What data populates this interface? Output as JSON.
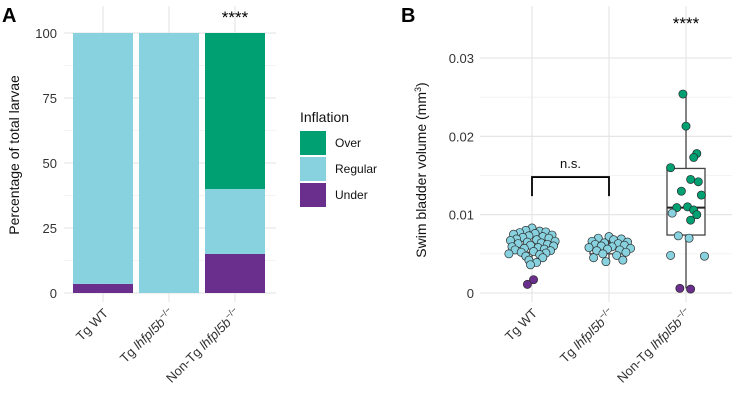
{
  "colors": {
    "over": "#00A072",
    "regular": "#88D2E0",
    "under": "#6A2E8C",
    "box_fill": "#ffffff",
    "box_stroke": "#444444"
  },
  "chart_data": [
    {
      "panel": "A",
      "type": "bar",
      "stacked": true,
      "categories": [
        "Tg WT",
        "Tg lhfpl5b−/−",
        "Non-Tg lhfpl5b−/−"
      ],
      "category_parts": [
        {
          "plain": "Tg WT",
          "italic": "",
          "sup": ""
        },
        {
          "plain": "Tg ",
          "italic": "lhfpl5b",
          "sup": "−/−"
        },
        {
          "plain": "Non-Tg ",
          "italic": "lhfpl5b",
          "sup": "−/−"
        }
      ],
      "series": [
        {
          "name": "Under",
          "values": [
            3.5,
            0,
            15
          ]
        },
        {
          "name": "Regular",
          "values": [
            96.5,
            100,
            25
          ]
        },
        {
          "name": "Over",
          "values": [
            0,
            0,
            60
          ]
        }
      ],
      "ylabel": "Percentage of total larvae",
      "xlabel": "",
      "ylim": [
        0,
        100
      ],
      "yticks": [
        0,
        25,
        50,
        75,
        100
      ],
      "ytick_labels": [
        "0",
        "25",
        "50",
        "75",
        "100"
      ],
      "grid": true,
      "legend": {
        "title": "Inflation",
        "placement": "right",
        "items": [
          {
            "label": "Over",
            "key": "over"
          },
          {
            "label": "Regular",
            "key": "regular"
          },
          {
            "label": "Under",
            "key": "under"
          }
        ]
      },
      "annotations": [
        {
          "text": "****",
          "category_index": 2
        }
      ]
    },
    {
      "panel": "B",
      "type": "scatter",
      "overlay": "boxplot",
      "categories": [
        "Tg WT",
        "Tg lhfpl5b−/−",
        "Non-Tg lhfpl5b−/−"
      ],
      "category_parts": [
        {
          "plain": "Tg WT",
          "italic": "",
          "sup": ""
        },
        {
          "plain": "Tg ",
          "italic": "lhfpl5b",
          "sup": "−/−"
        },
        {
          "plain": "Non-Tg ",
          "italic": "lhfpl5b",
          "sup": "−/−"
        }
      ],
      "ylabel_text": "Swim bladder volume (mm",
      "ylabel_sup": "3",
      "ylabel_close": ")",
      "xlabel": "",
      "ylim": [
        0,
        0.03
      ],
      "yticks": [
        0,
        0.01,
        0.02,
        0.03
      ],
      "ytick_labels": [
        "0",
        "0.01",
        "0.02",
        "0.03"
      ],
      "grid": true,
      "boxes": [
        {
          "q1": 0.0052,
          "median": 0.0059,
          "q3": 0.0072,
          "whisker_low": 0.0036,
          "whisker_high": 0.0083
        },
        {
          "q1": 0.005,
          "median": 0.0057,
          "q3": 0.0064,
          "whisker_low": 0.004,
          "whisker_high": 0.0072
        },
        {
          "q1": 0.0074,
          "median": 0.0109,
          "q3": 0.0159,
          "whisker_low": 0.0006,
          "whisker_high": 0.0254
        }
      ],
      "points": [
        [
          {
            "y": 0.0083,
            "c": "regular",
            "dx": 0.0
          },
          {
            "y": 0.008,
            "c": "regular",
            "dx": -0.08
          },
          {
            "y": 0.0079,
            "c": "regular",
            "dx": 0.1
          },
          {
            "y": 0.0078,
            "c": "regular",
            "dx": 0.18
          },
          {
            "y": 0.0077,
            "c": "regular",
            "dx": -0.16
          },
          {
            "y": 0.0076,
            "c": "regular",
            "dx": 0.04
          },
          {
            "y": 0.0075,
            "c": "regular",
            "dx": -0.24
          },
          {
            "y": 0.0074,
            "c": "regular",
            "dx": 0.26
          },
          {
            "y": 0.0073,
            "c": "regular",
            "dx": -0.04
          },
          {
            "y": 0.0072,
            "c": "regular",
            "dx": 0.14
          },
          {
            "y": 0.0071,
            "c": "regular",
            "dx": -0.12
          },
          {
            "y": 0.007,
            "c": "regular",
            "dx": 0.22
          },
          {
            "y": 0.0069,
            "c": "regular",
            "dx": -0.2
          },
          {
            "y": 0.0068,
            "c": "regular",
            "dx": 0.06
          },
          {
            "y": 0.0067,
            "c": "regular",
            "dx": -0.28
          },
          {
            "y": 0.0066,
            "c": "regular",
            "dx": 0.3
          },
          {
            "y": 0.0065,
            "c": "regular",
            "dx": -0.06
          },
          {
            "y": 0.0064,
            "c": "regular",
            "dx": 0.12
          },
          {
            "y": 0.0063,
            "c": "regular",
            "dx": -0.18
          },
          {
            "y": 0.0062,
            "c": "regular",
            "dx": 0.2
          },
          {
            "y": 0.0061,
            "c": "regular",
            "dx": -0.02
          },
          {
            "y": 0.006,
            "c": "regular",
            "dx": 0.28
          },
          {
            "y": 0.0059,
            "c": "regular",
            "dx": -0.26
          },
          {
            "y": 0.0058,
            "c": "regular",
            "dx": 0.08
          },
          {
            "y": 0.0057,
            "c": "regular",
            "dx": -0.1
          },
          {
            "y": 0.0056,
            "c": "regular",
            "dx": 0.16
          },
          {
            "y": 0.0055,
            "c": "regular",
            "dx": -0.22
          },
          {
            "y": 0.0054,
            "c": "regular",
            "dx": 0.24
          },
          {
            "y": 0.0053,
            "c": "regular",
            "dx": 0.02
          },
          {
            "y": 0.0052,
            "c": "regular",
            "dx": -0.14
          },
          {
            "y": 0.0051,
            "c": "regular",
            "dx": 0.18
          },
          {
            "y": 0.005,
            "c": "regular",
            "dx": -0.3
          },
          {
            "y": 0.0049,
            "c": "regular",
            "dx": 0.1
          },
          {
            "y": 0.0047,
            "c": "regular",
            "dx": -0.08
          },
          {
            "y": 0.0045,
            "c": "regular",
            "dx": 0.14
          },
          {
            "y": 0.0042,
            "c": "regular",
            "dx": -0.04
          },
          {
            "y": 0.0039,
            "c": "regular",
            "dx": 0.06
          },
          {
            "y": 0.0036,
            "c": "regular",
            "dx": -0.02
          },
          {
            "y": 0.0017,
            "c": "under",
            "dx": 0.02
          },
          {
            "y": 0.0011,
            "c": "under",
            "dx": -0.06
          }
        ],
        [
          {
            "y": 0.0072,
            "c": "regular",
            "dx": 0.0
          },
          {
            "y": 0.007,
            "c": "regular",
            "dx": -0.14
          },
          {
            "y": 0.0069,
            "c": "regular",
            "dx": 0.16
          },
          {
            "y": 0.0068,
            "c": "regular",
            "dx": 0.06
          },
          {
            "y": 0.0066,
            "c": "regular",
            "dx": -0.22
          },
          {
            "y": 0.0065,
            "c": "regular",
            "dx": 0.24
          },
          {
            "y": 0.0064,
            "c": "regular",
            "dx": -0.06
          },
          {
            "y": 0.0063,
            "c": "regular",
            "dx": 0.12
          },
          {
            "y": 0.0062,
            "c": "regular",
            "dx": -0.18
          },
          {
            "y": 0.0061,
            "c": "regular",
            "dx": 0.2
          },
          {
            "y": 0.006,
            "c": "regular",
            "dx": -0.1
          },
          {
            "y": 0.0059,
            "c": "regular",
            "dx": 0.04
          },
          {
            "y": 0.0058,
            "c": "regular",
            "dx": -0.26
          },
          {
            "y": 0.0057,
            "c": "regular",
            "dx": 0.28
          },
          {
            "y": 0.0056,
            "c": "regular",
            "dx": -0.02
          },
          {
            "y": 0.0055,
            "c": "regular",
            "dx": 0.14
          },
          {
            "y": 0.0054,
            "c": "regular",
            "dx": -0.16
          },
          {
            "y": 0.0052,
            "c": "regular",
            "dx": 0.22
          },
          {
            "y": 0.005,
            "c": "regular",
            "dx": -0.08
          },
          {
            "y": 0.0048,
            "c": "regular",
            "dx": 0.1
          },
          {
            "y": 0.0045,
            "c": "regular",
            "dx": -0.2
          },
          {
            "y": 0.0042,
            "c": "regular",
            "dx": 0.18
          },
          {
            "y": 0.004,
            "c": "regular",
            "dx": -0.04
          }
        ],
        [
          {
            "y": 0.0254,
            "c": "over",
            "dx": -0.04
          },
          {
            "y": 0.0213,
            "c": "over",
            "dx": 0.0
          },
          {
            "y": 0.0178,
            "c": "over",
            "dx": 0.14
          },
          {
            "y": 0.0173,
            "c": "over",
            "dx": 0.1
          },
          {
            "y": 0.016,
            "c": "over",
            "dx": -0.2
          },
          {
            "y": 0.0145,
            "c": "over",
            "dx": 0.06
          },
          {
            "y": 0.0142,
            "c": "over",
            "dx": 0.16
          },
          {
            "y": 0.013,
            "c": "over",
            "dx": -0.06
          },
          {
            "y": 0.0125,
            "c": "over",
            "dx": 0.2
          },
          {
            "y": 0.011,
            "c": "over",
            "dx": 0.02
          },
          {
            "y": 0.0109,
            "c": "over",
            "dx": -0.12
          },
          {
            "y": 0.0106,
            "c": "over",
            "dx": 0.1
          },
          {
            "y": 0.0102,
            "c": "regular",
            "dx": -0.18
          },
          {
            "y": 0.01,
            "c": "over",
            "dx": 0.14
          },
          {
            "y": 0.0093,
            "c": "over",
            "dx": 0.06
          },
          {
            "y": 0.0073,
            "c": "regular",
            "dx": -0.1
          },
          {
            "y": 0.007,
            "c": "regular",
            "dx": 0.04
          },
          {
            "y": 0.0048,
            "c": "regular",
            "dx": -0.2
          },
          {
            "y": 0.0047,
            "c": "regular",
            "dx": 0.24
          },
          {
            "y": 0.0006,
            "c": "under",
            "dx": -0.08
          },
          {
            "y": 0.0005,
            "c": "under",
            "dx": 0.06
          }
        ]
      ],
      "comparison": {
        "from_index": 0,
        "to_index": 1,
        "label": "n.s.",
        "level": 0.0148
      },
      "annotations": [
        {
          "text": "****",
          "category_index": 2
        }
      ]
    }
  ]
}
